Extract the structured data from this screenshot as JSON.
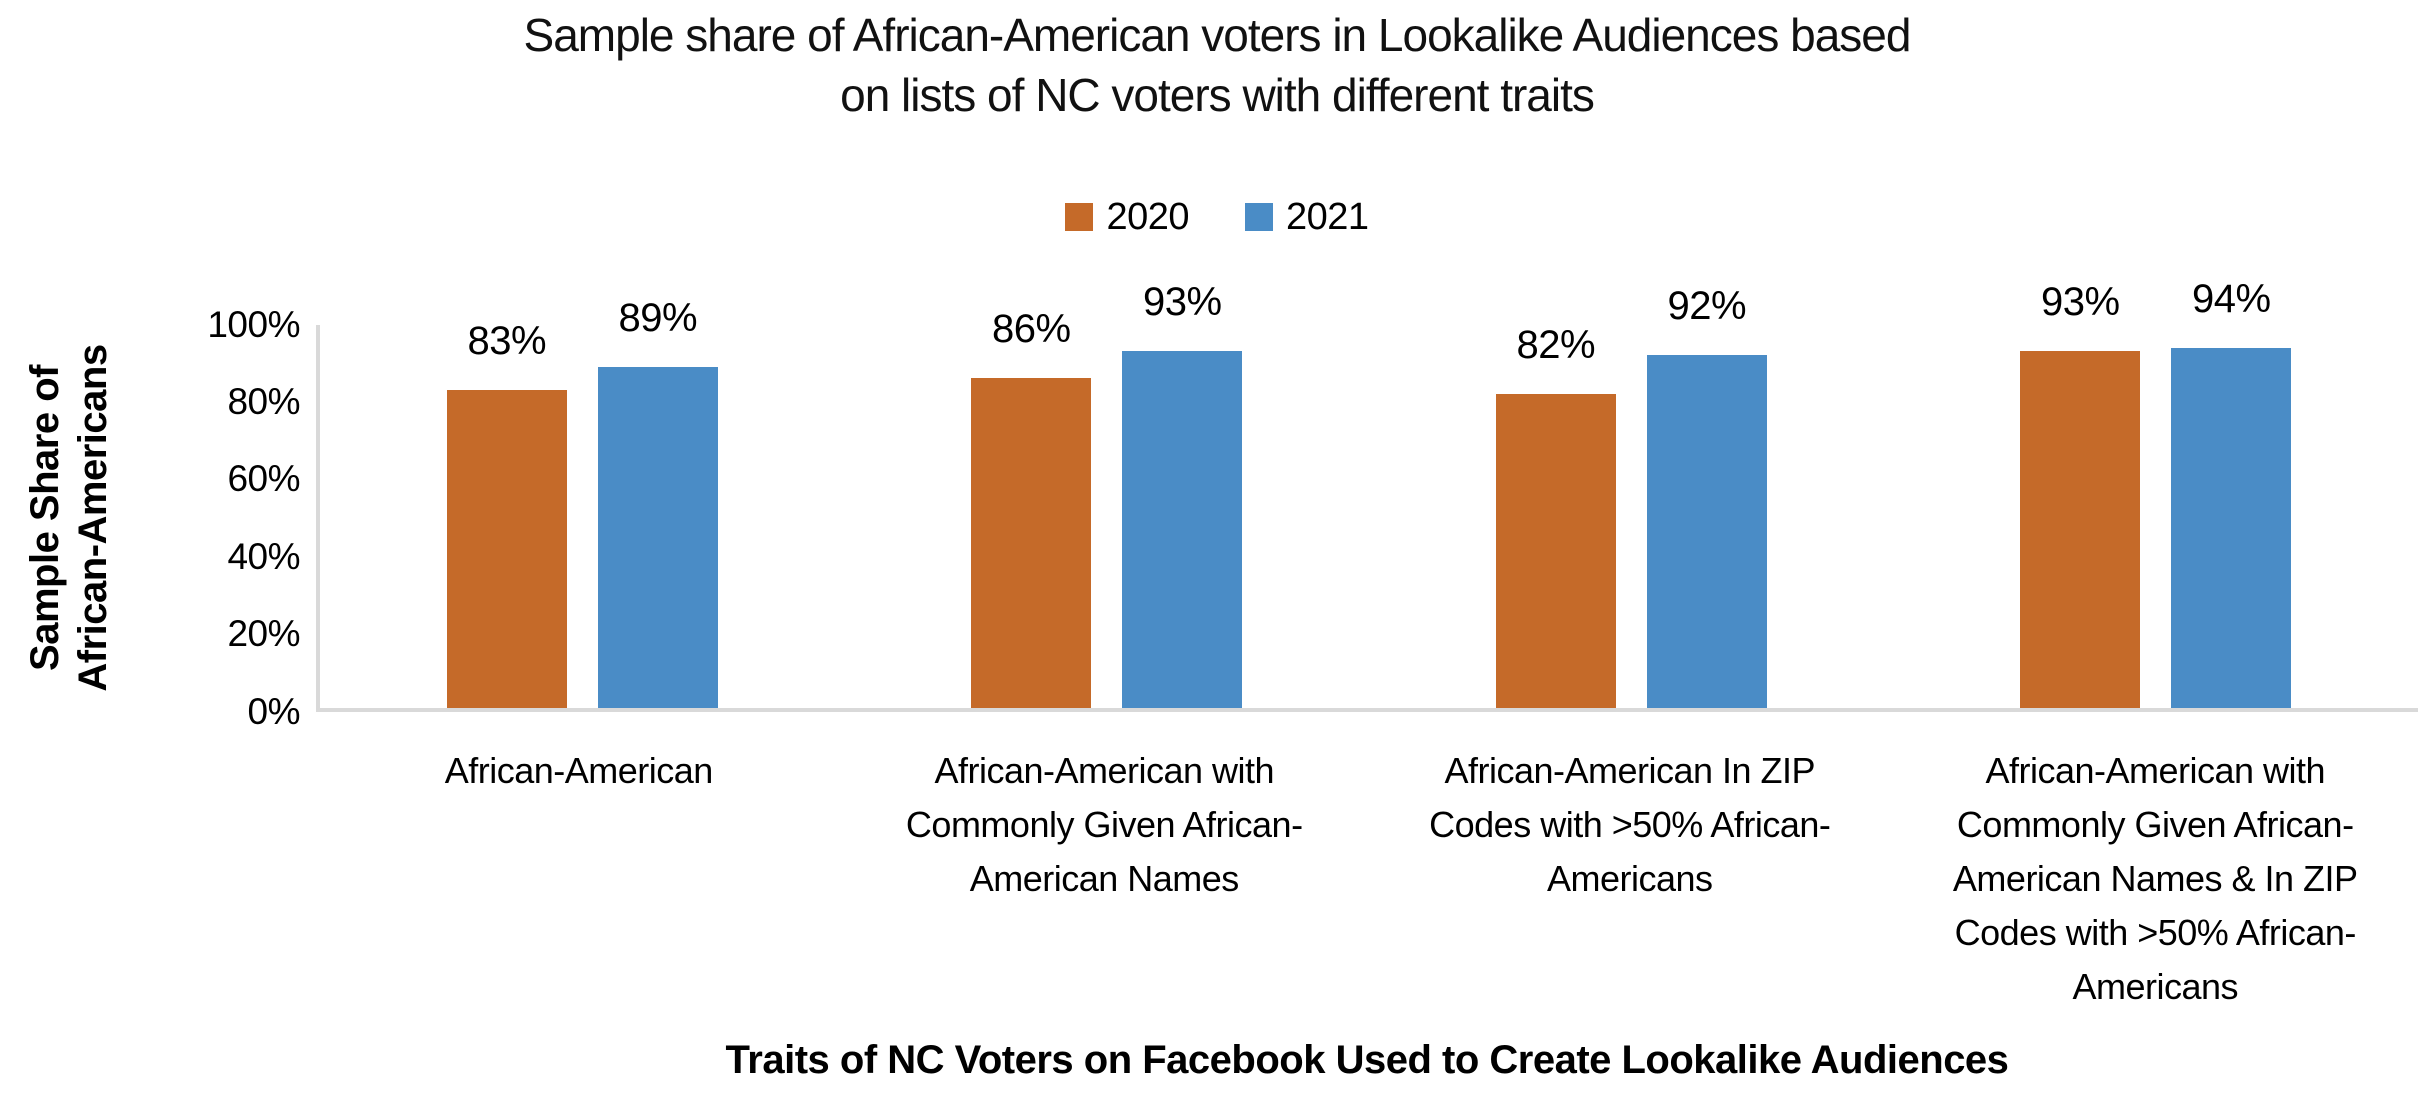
{
  "title": {
    "text": "Sample share of African-American voters in Lookalike Audiences based on lists of NC voters with different traits",
    "lines": "Sample share of African-American voters in Lookalike Audiences based\non lists of NC voters with different traits"
  },
  "legend": {
    "items": [
      {
        "label": "2020",
        "color": "#C56A29"
      },
      {
        "label": "2021",
        "color": "#4A8CC6"
      }
    ]
  },
  "y_axis": {
    "label": "Sample Share of African-Americans",
    "label_lines": "Sample Share of\nAfrican-Americans",
    "ticks": [
      "0%",
      "20%",
      "40%",
      "60%",
      "80%",
      "100%"
    ]
  },
  "x_axis": {
    "title": "Traits of NC Voters on Facebook Used to Create Lookalike Audiences"
  },
  "colors": {
    "axis_line": "#D9D9D9",
    "text": "#000000"
  },
  "chart_data": {
    "type": "bar",
    "title": "Sample share of African-American voters in Lookalike Audiences based on lists of NC voters with different traits",
    "xlabel": "Traits of NC Voters on Facebook Used to Create Lookalike Audiences",
    "ylabel": "Sample Share of African-Americans",
    "categories": [
      "African-American",
      "African-American with Commonly Given African-American Names",
      "African-American In ZIP Codes with >50% African-Americans",
      "African-American with Commonly Given African-American Names & In ZIP Codes with >50% African-Americans"
    ],
    "series": [
      {
        "name": "2020",
        "color": "#C56A29",
        "values": [
          83,
          86,
          82,
          93
        ]
      },
      {
        "name": "2021",
        "color": "#4A8CC6",
        "values": [
          89,
          93,
          92,
          94
        ]
      }
    ],
    "data_labels": [
      [
        "83%",
        "89%"
      ],
      [
        "86%",
        "93%"
      ],
      [
        "82%",
        "92%"
      ],
      [
        "93%",
        "94%"
      ]
    ],
    "ylim": [
      0,
      100
    ],
    "ytick_step": 20,
    "grid": false,
    "legend_position": "top-center",
    "value_label_format": "percent"
  }
}
